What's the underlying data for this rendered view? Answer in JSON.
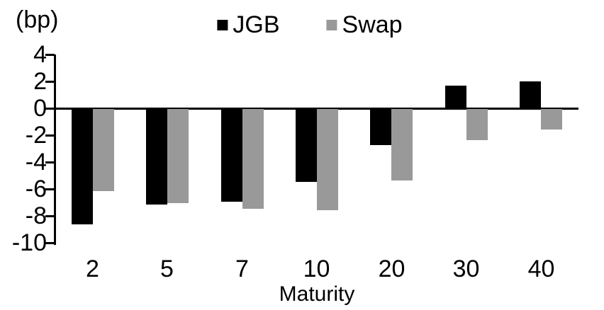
{
  "chart_data": {
    "type": "bar",
    "title": "",
    "ylabel": "(bp)",
    "xlabel": "Maturity",
    "categories": [
      "2",
      "5",
      "7",
      "10",
      "20",
      "30",
      "40"
    ],
    "series": [
      {
        "name": "JGB",
        "color": "#000000",
        "values": [
          -8.6,
          -7.1,
          -6.9,
          -5.4,
          -2.7,
          1.7,
          2.0
        ]
      },
      {
        "name": "Swap",
        "color": "#999999",
        "values": [
          -6.1,
          -7.0,
          -7.4,
          -7.5,
          -5.3,
          -2.3,
          -1.5
        ]
      }
    ],
    "ylim": [
      -10,
      4
    ],
    "yticks": [
      4,
      2,
      0,
      -2,
      -4,
      -6,
      -8,
      -10
    ],
    "grid": false,
    "legend_position": "top-center",
    "axis_color": "#000000"
  }
}
